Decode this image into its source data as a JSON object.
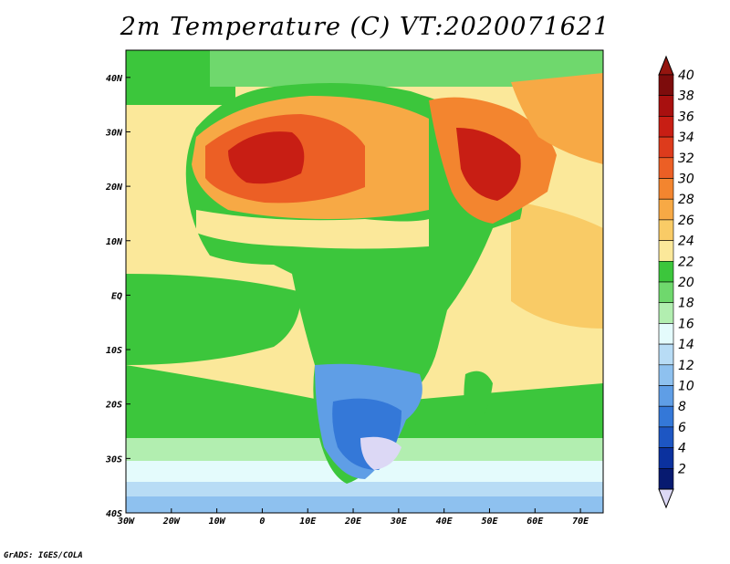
{
  "title": "2m Temperature (C) VT:2020071621",
  "footer": "GrADS: IGES/COLA",
  "map": {
    "lon_range": [
      -30,
      75
    ],
    "lat_range": [
      -40,
      45
    ],
    "x_ticks": [
      "30W",
      "20W",
      "10W",
      "0",
      "10E",
      "20E",
      "30E",
      "40E",
      "50E",
      "60E",
      "70E"
    ],
    "y_ticks": [
      "40N",
      "30N",
      "20N",
      "10N",
      "EQ",
      "10S",
      "20S",
      "30S",
      "40S"
    ]
  },
  "colorbar": {
    "labels": [
      "40",
      "38",
      "36",
      "34",
      "32",
      "30",
      "28",
      "26",
      "24",
      "22",
      "20",
      "18",
      "16",
      "14",
      "12",
      "10",
      "8",
      "6",
      "4",
      "2"
    ],
    "colors": [
      "#7d0c0c",
      "#a8100f",
      "#c81e14",
      "#dd3b1c",
      "#ec5f25",
      "#f3852f",
      "#f7a945",
      "#f9cb66",
      "#fbe89a",
      "#3cc63c",
      "#6fd86d",
      "#b2eeb0",
      "#e4fbfc",
      "#b8dcf5",
      "#8ec1ef",
      "#5f9ee6",
      "#3478d8",
      "#1d56c3",
      "#0b319e",
      "#071a70"
    ],
    "top_arrow_color": "#94150f",
    "bottom_arrow_color": "#dcd8f5"
  },
  "chart_data": {
    "type": "heatmap",
    "title": "2m Temperature (C) VT:2020071621",
    "x_ticks": [
      "30W",
      "20W",
      "10W",
      "0",
      "10E",
      "20E",
      "30E",
      "40E",
      "50E",
      "60E",
      "70E"
    ],
    "y_ticks": [
      "40N",
      "30N",
      "20N",
      "10N",
      "EQ",
      "10S",
      "20S",
      "30S",
      "40S"
    ],
    "xlim": [
      -30,
      75
    ],
    "ylim": [
      -40,
      45
    ],
    "colorbar_levels": [
      2,
      4,
      6,
      8,
      10,
      12,
      14,
      16,
      18,
      20,
      22,
      24,
      26,
      28,
      30,
      32,
      34,
      36,
      38,
      40
    ]
  }
}
